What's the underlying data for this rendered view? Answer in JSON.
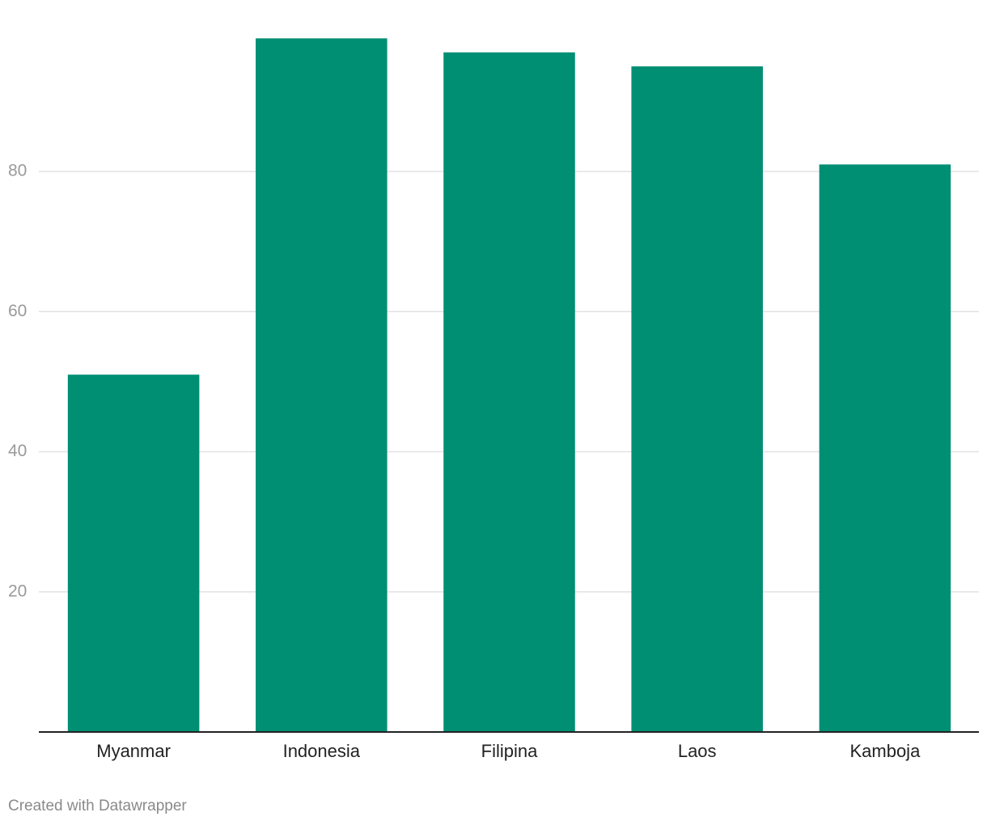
{
  "chart_data": {
    "type": "bar",
    "categories": [
      "Myanmar",
      "Indonesia",
      "Filipina",
      "Laos",
      "Kamboja"
    ],
    "values": [
      51,
      99,
      97,
      95,
      81
    ],
    "color": "#008f73",
    "ylim": [
      0,
      100
    ],
    "yticks": [
      20,
      40,
      60,
      80
    ],
    "grid": true
  },
  "credit": "Created with Datawrapper"
}
